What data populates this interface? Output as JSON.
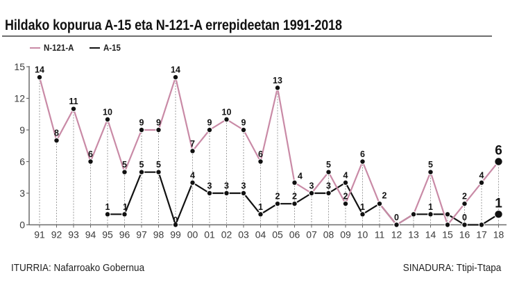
{
  "title": "Hildako kopurua A-15 eta N-121-A errepideetan 1991-2018",
  "legend": [
    {
      "label": "N-121-A",
      "color": "#c98aa6"
    },
    {
      "label": "A-15",
      "color": "#111111"
    }
  ],
  "footer": {
    "source": "ITURRIA: Nafarroako Gobernua",
    "signature": "SINADURA: Ttipi-Ttapa"
  },
  "chart_data": {
    "type": "line",
    "title": "Hildako kopurua A-15 eta N-121-A errepideetan 1991-2018",
    "xlabel": "",
    "ylabel": "",
    "x": [
      "91",
      "92",
      "93",
      "94",
      "95",
      "96",
      "97",
      "98",
      "99",
      "00",
      "01",
      "02",
      "03",
      "04",
      "05",
      "06",
      "07",
      "08",
      "09",
      "10",
      "11",
      "12",
      "13",
      "14",
      "15",
      "16",
      "17",
      "18"
    ],
    "ylim": [
      0,
      15
    ],
    "yticks": [
      0,
      3,
      6,
      9,
      12,
      15
    ],
    "grid": "dotted vertical drop lines per year",
    "legend_position": "top-left",
    "highlight_last_point": true,
    "series": [
      {
        "name": "N-121-A",
        "color": "#c98aa6",
        "values": [
          14,
          8,
          11,
          6,
          10,
          5,
          9,
          9,
          14,
          7,
          9,
          10,
          9,
          6,
          13,
          4,
          3,
          5,
          2,
          6,
          2,
          0,
          1,
          5,
          0,
          2,
          4,
          6
        ],
        "data_labels": [
          "14",
          "8",
          "11",
          "6",
          "10",
          "5",
          "9",
          "9",
          "14",
          "7",
          "9",
          "10",
          "9",
          "6",
          "13",
          "4",
          "3",
          "5",
          "2",
          "6",
          "2",
          "0",
          null,
          "5",
          null,
          "2",
          "4",
          "6"
        ]
      },
      {
        "name": "A-15",
        "color": "#111111",
        "values": [
          null,
          null,
          null,
          null,
          1,
          1,
          5,
          5,
          0,
          4,
          3,
          3,
          3,
          1,
          2,
          2,
          3,
          3,
          4,
          1,
          2,
          0,
          1,
          1,
          1,
          0,
          0,
          1
        ],
        "data_labels": [
          null,
          null,
          null,
          null,
          "1",
          "1",
          "5",
          "5",
          "0",
          "4",
          "3",
          "3",
          "3",
          "1",
          "2",
          "2",
          null,
          "3",
          "4",
          "1",
          null,
          null,
          null,
          "1",
          null,
          "0",
          null,
          "1"
        ]
      }
    ]
  }
}
